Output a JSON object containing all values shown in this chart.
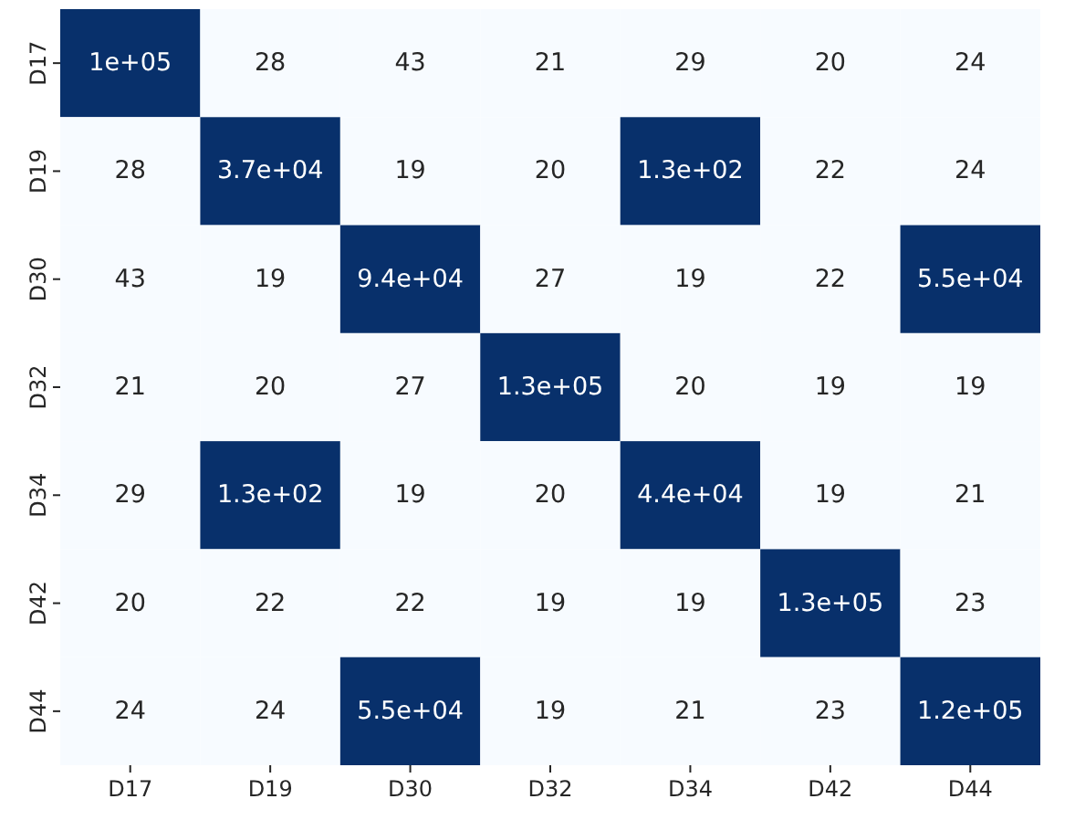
{
  "chart_data": {
    "type": "heatmap",
    "categories": [
      "D17",
      "D19",
      "D30",
      "D32",
      "D34",
      "D42",
      "D44"
    ],
    "y_categories": [
      "D17",
      "D19",
      "D30",
      "D32",
      "D34",
      "D42",
      "D44"
    ],
    "cells": [
      [
        100000,
        28,
        43,
        21,
        29,
        20,
        24
      ],
      [
        28,
        37000,
        19,
        20,
        130,
        22,
        24
      ],
      [
        43,
        19,
        94000,
        27,
        19,
        22,
        55000
      ],
      [
        21,
        20,
        27,
        130000,
        20,
        19,
        19
      ],
      [
        29,
        130,
        19,
        20,
        44000,
        19,
        21
      ],
      [
        20,
        22,
        22,
        19,
        19,
        130000,
        23
      ],
      [
        24,
        24,
        55000,
        19,
        21,
        23,
        120000
      ]
    ],
    "cell_labels": [
      [
        "1e+05",
        "28",
        "43",
        "21",
        "29",
        "20",
        "24"
      ],
      [
        "28",
        "3.7e+04",
        "19",
        "20",
        "1.3e+02",
        "22",
        "24"
      ],
      [
        "43",
        "19",
        "9.4e+04",
        "27",
        "19",
        "22",
        "5.5e+04"
      ],
      [
        "21",
        "20",
        "27",
        "1.3e+05",
        "20",
        "19",
        "19"
      ],
      [
        "29",
        "1.3e+02",
        "19",
        "20",
        "4.4e+04",
        "19",
        "21"
      ],
      [
        "20",
        "22",
        "22",
        "19",
        "19",
        "1.3e+05",
        "23"
      ],
      [
        "24",
        "24",
        "5.5e+04",
        "19",
        "21",
        "23",
        "1.2e+05"
      ]
    ]
  }
}
